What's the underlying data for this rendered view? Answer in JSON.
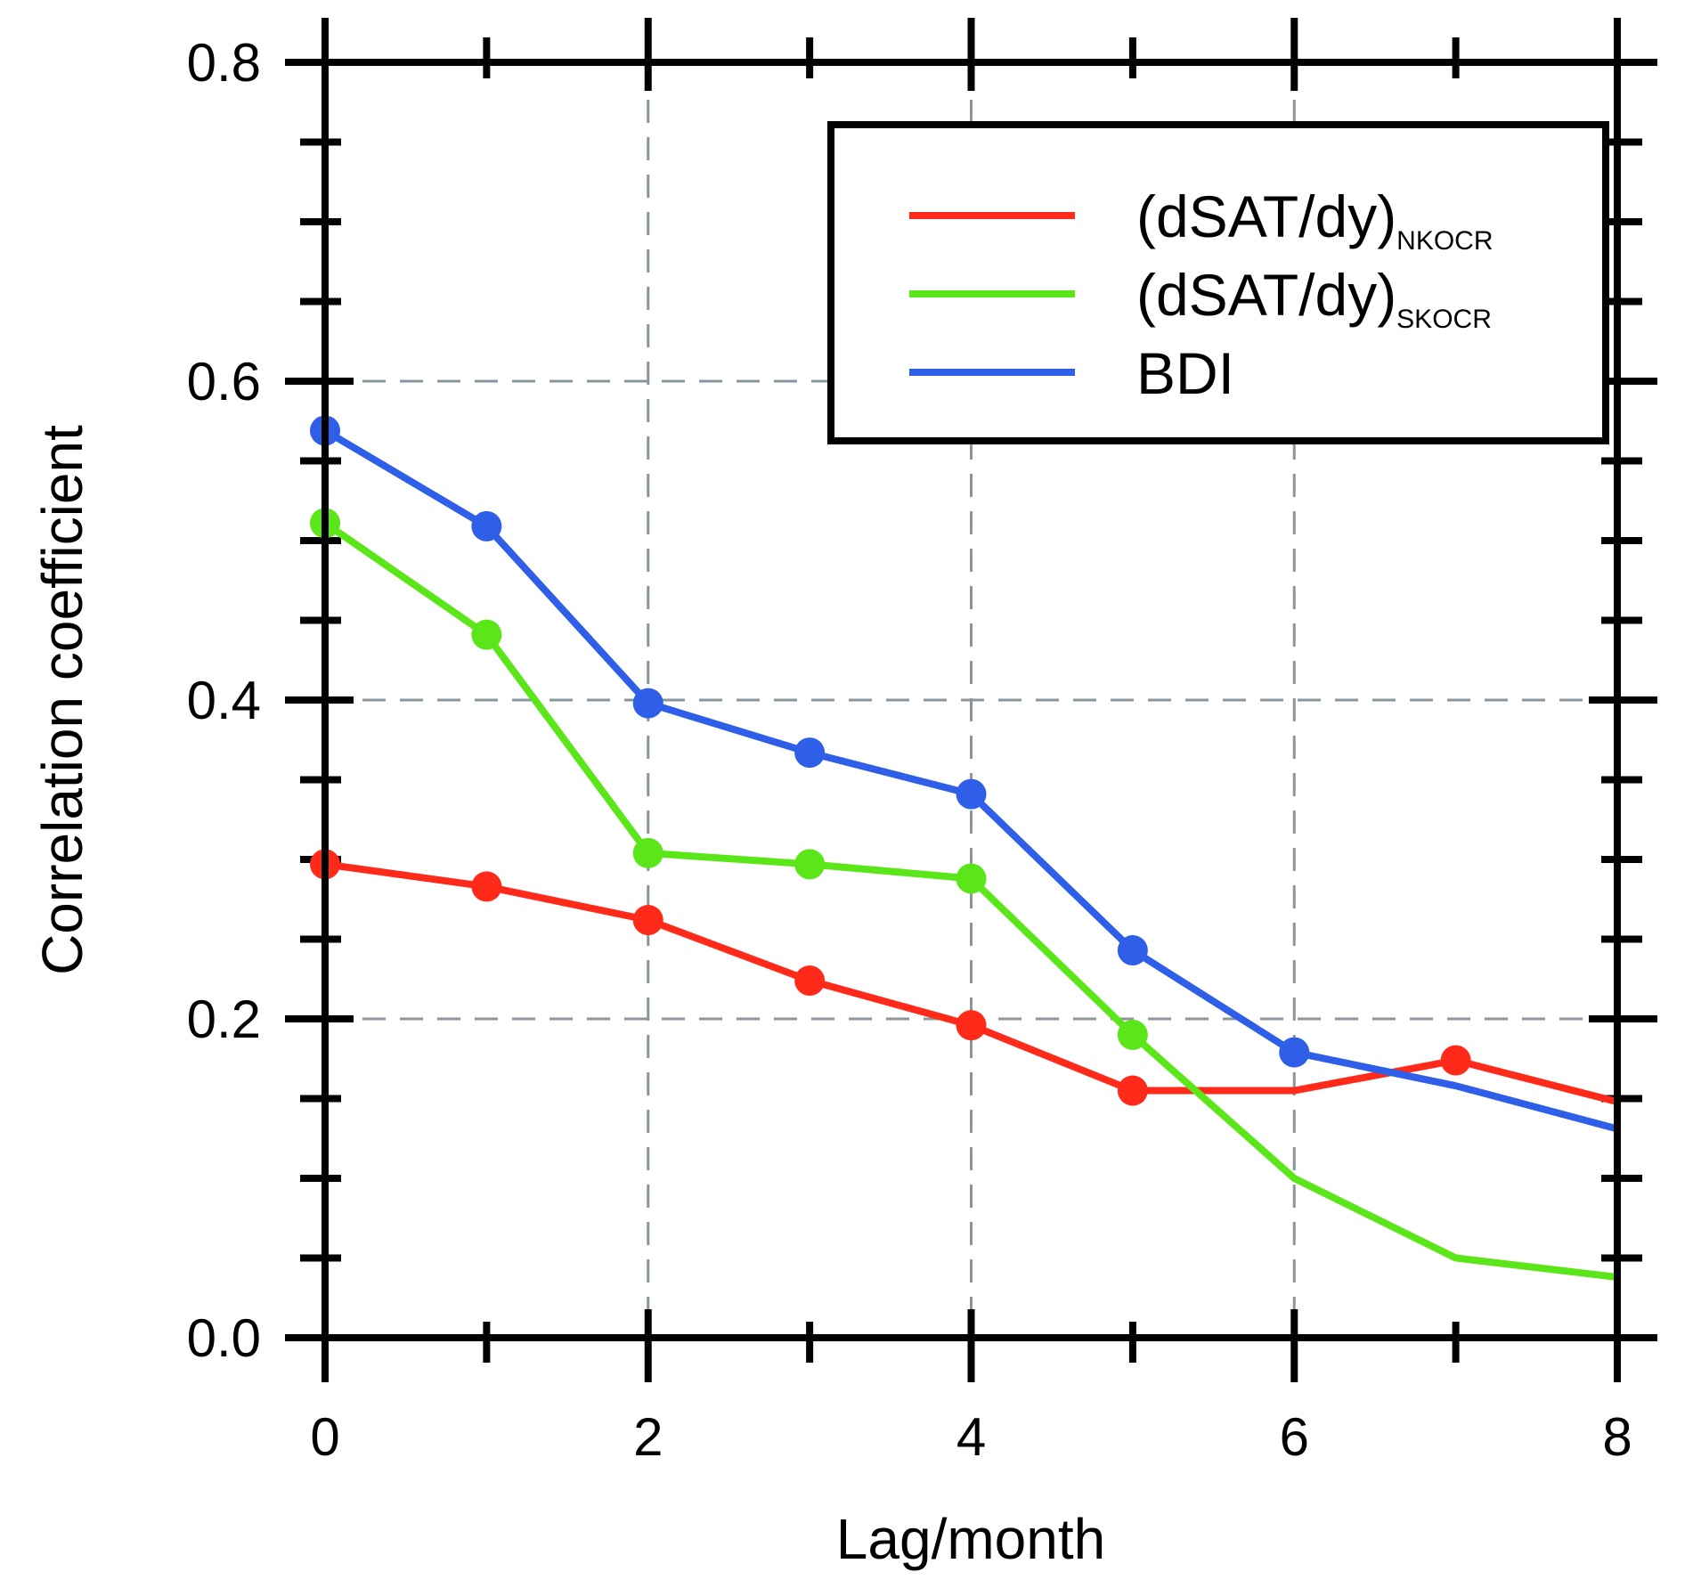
{
  "chart_data": {
    "type": "line",
    "title": "",
    "xlabel": "Lag/month",
    "ylabel": "Correlation coefficient",
    "xlim": [
      0,
      8
    ],
    "ylim": [
      0,
      0.8
    ],
    "x_ticks": [
      0,
      2,
      4,
      6,
      8
    ],
    "x_tick_labels": [
      "0",
      "2",
      "4",
      "6",
      "8"
    ],
    "y_ticks": [
      0,
      0.2,
      0.4,
      0.6,
      0.8
    ],
    "y_tick_labels": [
      "0.0",
      "0.2",
      "0.4",
      "0.6",
      "0.8"
    ],
    "x_minor_step": 1,
    "y_minor_step": 0.05,
    "grid": true,
    "grid_style": "dashed",
    "legend_position": "top-right",
    "x": [
      0,
      1,
      2,
      3,
      4,
      5,
      6,
      7,
      8
    ],
    "series": [
      {
        "name": "(dSAT/dy)",
        "name_subscript": "NKOCR",
        "color": "#ff2a1a",
        "values": [
          0.297,
          0.283,
          0.262,
          0.224,
          0.196,
          0.155,
          0.155,
          0.174,
          0.148
        ],
        "markers": [
          true,
          true,
          true,
          true,
          true,
          true,
          false,
          true,
          false
        ]
      },
      {
        "name": "(dSAT/dy)",
        "name_subscript": "SKOCR",
        "color": "#5be61a",
        "values": [
          0.511,
          0.441,
          0.304,
          0.297,
          0.288,
          0.19,
          0.1,
          0.05,
          0.038
        ],
        "markers": [
          true,
          true,
          true,
          true,
          true,
          true,
          false,
          false,
          false
        ]
      },
      {
        "name": "BDI",
        "name_subscript": "",
        "color": "#2f5fe8",
        "values": [
          0.569,
          0.509,
          0.398,
          0.367,
          0.341,
          0.243,
          0.179,
          0.158,
          0.131
        ],
        "markers": [
          true,
          true,
          true,
          true,
          true,
          true,
          true,
          false,
          false
        ]
      }
    ]
  }
}
